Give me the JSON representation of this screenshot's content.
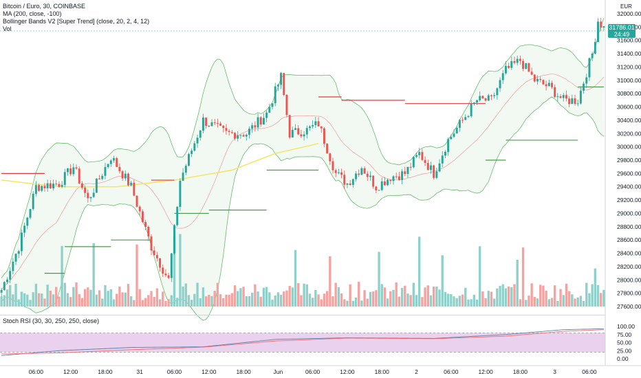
{
  "legend": {
    "title": "Bitcoin / Euro, 30, COINBASE",
    "ma": "MA (200, close, -100)",
    "bb": "Bollinger Bands V2 [Super Trend] (close, 20, 2, 4, 12)",
    "vol": "Vol",
    "stoch": "Stoch RSI (30, 30, 250, 250, close)"
  },
  "price_tag": {
    "value": "31786.01",
    "time": "24:49"
  },
  "currency": "EUR",
  "colors": {
    "up": "#26a69a",
    "down": "#ef5350",
    "vol_up": "#8fd1ca",
    "vol_down": "#f5a3a0",
    "ma": "#f7e463",
    "band_line_green": "#66bb6a",
    "band_line_red": "#ef9a9a",
    "supertrend_up": "#43a047",
    "supertrend_down": "#e53935",
    "stoch_bg": "#e1bee7",
    "stoch_k": "#5b7fa6",
    "stoch_d": "#ef6c6c"
  },
  "chart_data": {
    "type": "candlestick",
    "price_axis": {
      "min": 27600,
      "max": 32000,
      "ticks": [
        "32000.00",
        "31800.00",
        "31600.00",
        "31400.00",
        "31200.00",
        "31000.00",
        "30800.00",
        "30600.00",
        "30400.00",
        "30200.00",
        "30000.00",
        "29800.00",
        "29600.00",
        "29400.00",
        "29200.00",
        "29000.00",
        "28800.00",
        "28600.00",
        "28400.00",
        "28200.00",
        "28000.00",
        "27800.00",
        "27600.00"
      ]
    },
    "stoch_axis": {
      "ticks": [
        "100.00",
        "75.00",
        "50.00",
        "25.00",
        "0.00"
      ]
    },
    "time_axis": {
      "labels": [
        "06:00",
        "12:00",
        "18:00",
        "31",
        "06:00",
        "12:00",
        "18:00",
        "Jun",
        "06:00",
        "12:00",
        "18:00",
        "2",
        "06:00",
        "12:00",
        "18:00",
        "3",
        "06:00"
      ],
      "label_index": [
        12,
        24,
        36,
        48,
        60,
        72,
        84,
        96,
        108,
        120,
        132,
        144,
        156,
        168,
        180,
        192,
        204
      ]
    },
    "waypoints": [
      [
        0,
        27850
      ],
      [
        6,
        28500
      ],
      [
        12,
        29400
      ],
      [
        20,
        29450
      ],
      [
        25,
        29700
      ],
      [
        30,
        29200
      ],
      [
        38,
        29850
      ],
      [
        45,
        29400
      ],
      [
        52,
        28500
      ],
      [
        58,
        28000
      ],
      [
        62,
        29500
      ],
      [
        70,
        30400
      ],
      [
        78,
        30200
      ],
      [
        85,
        30200
      ],
      [
        92,
        30500
      ],
      [
        97,
        31050
      ],
      [
        100,
        30200
      ],
      [
        106,
        30250
      ],
      [
        110,
        30350
      ],
      [
        116,
        29600
      ],
      [
        120,
        29450
      ],
      [
        125,
        29700
      ],
      [
        130,
        29400
      ],
      [
        135,
        29550
      ],
      [
        140,
        29600
      ],
      [
        145,
        29900
      ],
      [
        150,
        29600
      ],
      [
        155,
        30100
      ],
      [
        160,
        30400
      ],
      [
        165,
        30700
      ],
      [
        170,
        30700
      ],
      [
        175,
        31150
      ],
      [
        180,
        31300
      ],
      [
        185,
        31000
      ],
      [
        190,
        30900
      ],
      [
        195,
        30700
      ],
      [
        200,
        30700
      ],
      [
        205,
        31400
      ],
      [
        207,
        31900
      ],
      [
        209,
        31786
      ]
    ],
    "ma200": [
      [
        0,
        29500
      ],
      [
        20,
        29400
      ],
      [
        40,
        29400
      ],
      [
        60,
        29500
      ],
      [
        80,
        29650
      ],
      [
        95,
        29900
      ],
      [
        110,
        30050
      ]
    ],
    "supertrend": [
      {
        "x0": 0,
        "x1": 15,
        "y": 29600,
        "dir": "down"
      },
      {
        "x0": 15,
        "x1": 22,
        "y": 28100,
        "dir": "up"
      },
      {
        "x0": 22,
        "x1": 38,
        "y": 28500,
        "dir": "up"
      },
      {
        "x0": 38,
        "x1": 52,
        "y": 28600,
        "dir": "up"
      },
      {
        "x0": 52,
        "x1": 60,
        "y": 29500,
        "dir": "down"
      },
      {
        "x0": 60,
        "x1": 72,
        "y": 29000,
        "dir": "up"
      },
      {
        "x0": 72,
        "x1": 92,
        "y": 29050,
        "dir": "up"
      },
      {
        "x0": 92,
        "x1": 110,
        "y": 29650,
        "dir": "up"
      },
      {
        "x0": 110,
        "x1": 118,
        "y": 30750,
        "dir": "down"
      },
      {
        "x0": 118,
        "x1": 140,
        "y": 30700,
        "dir": "down"
      },
      {
        "x0": 140,
        "x1": 168,
        "y": 30650,
        "dir": "down"
      },
      {
        "x0": 168,
        "x1": 175,
        "y": 29800,
        "dir": "up"
      },
      {
        "x0": 175,
        "x1": 200,
        "y": 30100,
        "dir": "up"
      },
      {
        "x0": 200,
        "x1": 209,
        "y": 30900,
        "dir": "up"
      }
    ],
    "stoch": {
      "k": [
        [
          0,
          10
        ],
        [
          20,
          25
        ],
        [
          45,
          35
        ],
        [
          70,
          37
        ],
        [
          95,
          60
        ],
        [
          120,
          65
        ],
        [
          150,
          63
        ],
        [
          175,
          75
        ],
        [
          195,
          90
        ],
        [
          209,
          93
        ]
      ],
      "d": [
        [
          0,
          15
        ],
        [
          20,
          18
        ],
        [
          45,
          28
        ],
        [
          70,
          36
        ],
        [
          95,
          55
        ],
        [
          120,
          64
        ],
        [
          150,
          62
        ],
        [
          175,
          70
        ],
        [
          195,
          85
        ],
        [
          209,
          90
        ]
      ],
      "bands": [
        80,
        20
      ]
    }
  }
}
